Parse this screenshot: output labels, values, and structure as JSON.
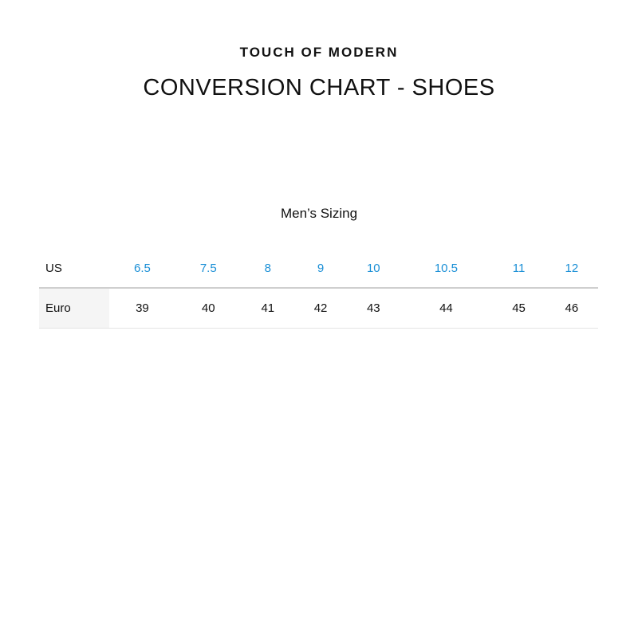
{
  "brand": "TOUCH OF MODERN",
  "title": "CONVERSION CHART - SHOES",
  "subtitle": "Men’s Sizing",
  "colors": {
    "us_values": "#1a8fd6",
    "label_cell_bg": "#f5f5f5"
  },
  "table": {
    "rows": [
      {
        "label": "US",
        "values": [
          "6.5",
          "7.5",
          "8",
          "9",
          "10",
          "10.5",
          "11",
          "12"
        ]
      },
      {
        "label": "Euro",
        "values": [
          "39",
          "40",
          "41",
          "42",
          "43",
          "44",
          "45",
          "46"
        ]
      }
    ]
  }
}
